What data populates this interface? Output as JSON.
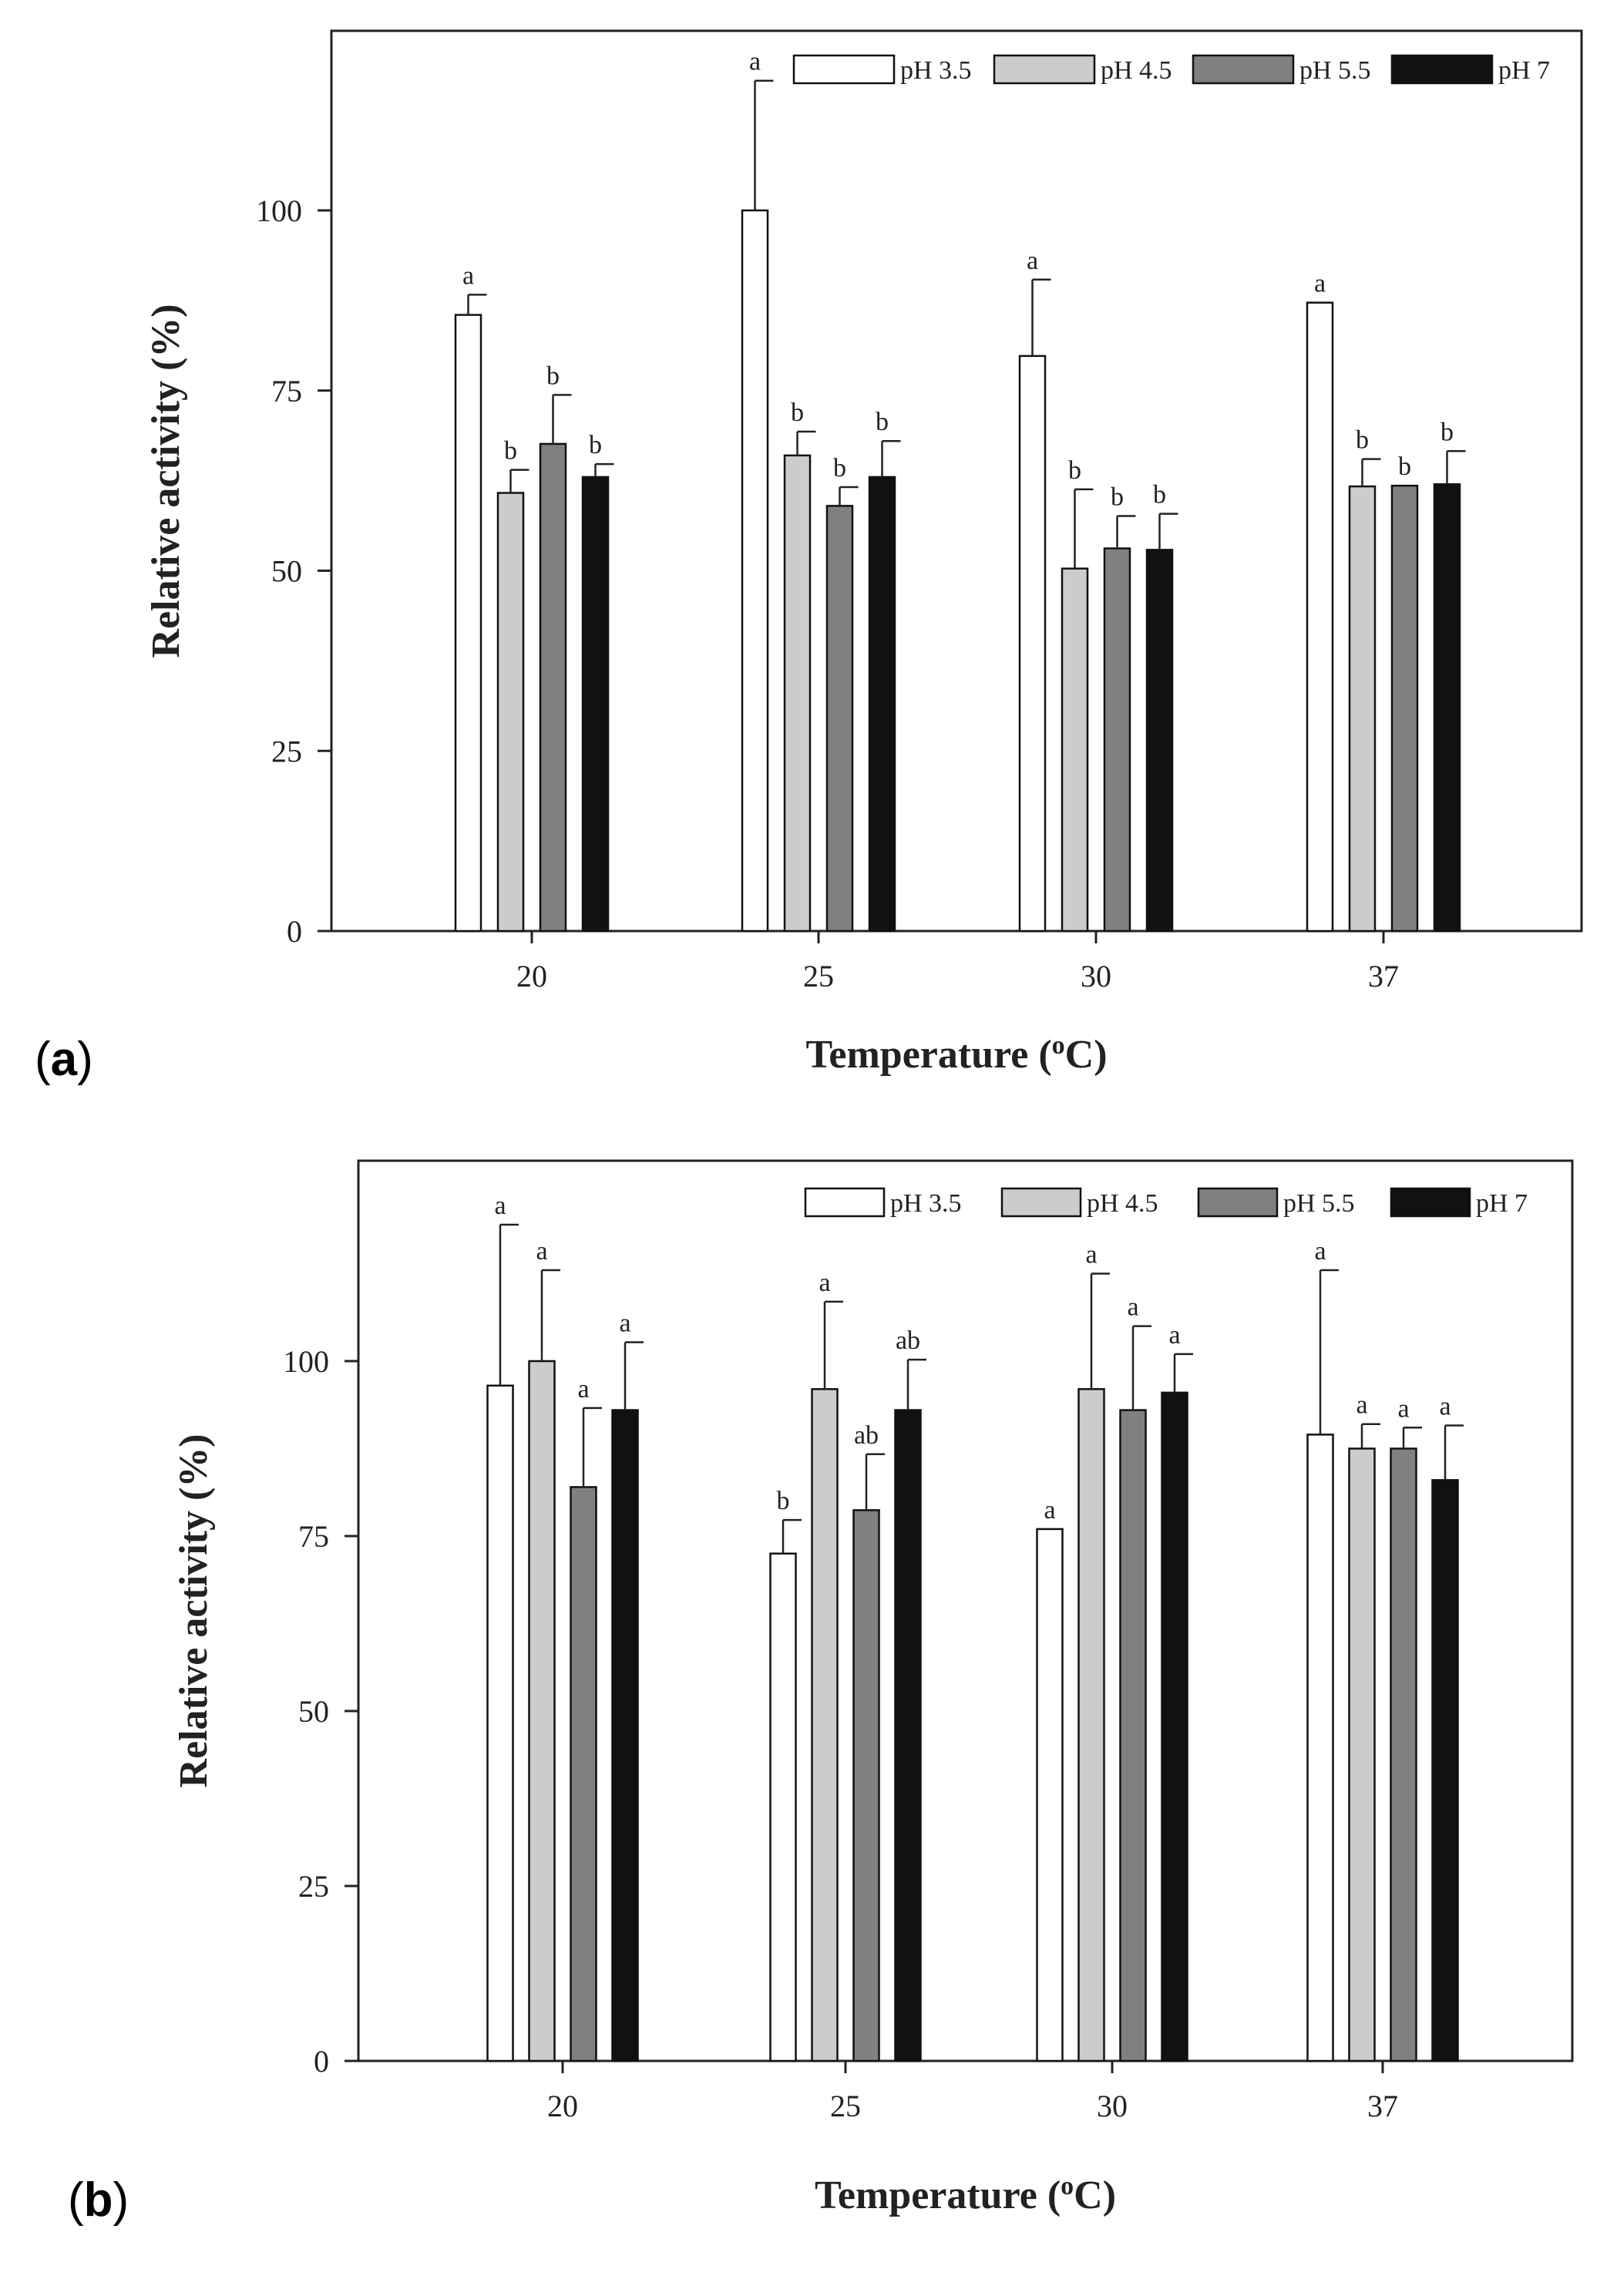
{
  "colors": {
    "pH 3.5": "#ffffff",
    "pH 4.5": "#cccccc",
    "pH 5.5": "#808080",
    "pH 7": "#111111"
  },
  "chart_data": [
    {
      "panel_label": "a",
      "type": "bar",
      "categories": [
        "20",
        "25",
        "30",
        "37"
      ],
      "xlabel": "Temperature (oC)",
      "xlabel_pre": "Temperature (",
      "xlabel_sup": "o",
      "xlabel_post": "C)",
      "ylabel": "Relative activity (%)",
      "ylim": [
        0,
        125
      ],
      "yticks": [
        "0",
        "25",
        "50",
        "75",
        "100"
      ],
      "legend": "top-right",
      "grid": false,
      "series": [
        {
          "name": "pH 3.5",
          "values": [
            85.5,
            100,
            79.8,
            87.2
          ],
          "errors": [
            2.8,
            18,
            10.6,
            0
          ],
          "labels": [
            "a",
            "a",
            "a",
            "a"
          ]
        },
        {
          "name": "pH 4.5",
          "values": [
            60.8,
            66,
            50.3,
            61.7
          ],
          "errors": [
            3.2,
            3.3,
            11,
            3.8
          ],
          "labels": [
            "b",
            "b",
            "b",
            "b"
          ]
        },
        {
          "name": "pH 5.5",
          "values": [
            67.6,
            59,
            53.1,
            61.8
          ],
          "errors": [
            6.8,
            2.6,
            4.5,
            0
          ],
          "labels": [
            "b",
            "b",
            "b",
            "b"
          ]
        },
        {
          "name": "pH 7",
          "values": [
            63,
            63,
            52.9,
            62
          ],
          "errors": [
            1.8,
            5,
            5,
            4.6
          ],
          "labels": [
            "b",
            "b",
            "b",
            "b"
          ]
        }
      ]
    },
    {
      "panel_label": "b",
      "type": "bar",
      "categories": [
        "20",
        "25",
        "30",
        "37"
      ],
      "xlabel": "Temperature (oC)",
      "xlabel_pre": "Temperature (",
      "xlabel_sup": "o",
      "xlabel_post": "C)",
      "ylabel": "Relative activity (%)",
      "ylim": [
        0,
        130
      ],
      "yticks": [
        "0",
        "25",
        "50",
        "75",
        "100"
      ],
      "legend": "top-right",
      "grid": false,
      "series": [
        {
          "name": "pH 3.5",
          "values": [
            96.5,
            72.5,
            76,
            89.5
          ],
          "errors": [
            23,
            4.8,
            0,
            23.5
          ],
          "labels": [
            "a",
            "b",
            "a",
            "a"
          ]
        },
        {
          "name": "pH 4.5",
          "values": [
            100,
            96,
            96,
            87.5
          ],
          "errors": [
            13,
            12.5,
            16.5,
            3.5
          ],
          "labels": [
            "a",
            "a",
            "a",
            "a"
          ]
        },
        {
          "name": "pH 5.5",
          "values": [
            82,
            78.7,
            93,
            87.5
          ],
          "errors": [
            11.3,
            8,
            12,
            3
          ],
          "labels": [
            "a",
            "ab",
            "a",
            "a"
          ]
        },
        {
          "name": "pH 7",
          "values": [
            93,
            93,
            95.5,
            83
          ],
          "errors": [
            9.7,
            7.2,
            5.5,
            7.8
          ],
          "labels": [
            "a",
            "ab",
            "a",
            "a"
          ]
        }
      ]
    }
  ]
}
